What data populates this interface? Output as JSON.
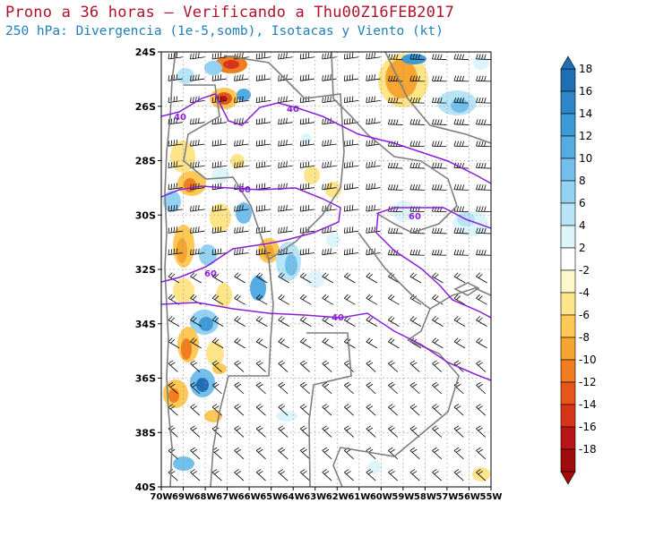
{
  "header": {
    "title": "Prono a 36 horas — Verificando a Thu00Z16FEB2017",
    "subtitle": "250 hPa: Divergencia (1e-5,somb), Isotacas y Viento (kt)"
  },
  "map": {
    "lon_range": [
      -70,
      -55
    ],
    "lat_range": [
      -40,
      -24
    ],
    "lat_labels": [
      "24S",
      "26S",
      "28S",
      "30S",
      "32S",
      "34S",
      "36S",
      "38S",
      "40S"
    ],
    "lon_labels": [
      "70W",
      "69W",
      "68W",
      "67W",
      "66W",
      "65W",
      "64W",
      "63W",
      "62W",
      "61W",
      "60W",
      "59W",
      "58W",
      "57W",
      "56W",
      "55W"
    ],
    "isotach_labels": [
      "40",
      "40",
      "60",
      "60",
      "60",
      "40"
    ]
  },
  "colorbar": {
    "levels": [
      "18",
      "16",
      "14",
      "12",
      "10",
      "8",
      "6",
      "4",
      "2",
      "-2",
      "-4",
      "-6",
      "-8",
      "-10",
      "-12",
      "-14",
      "-16",
      "-18"
    ],
    "colors": [
      "#1e6fb5",
      "#2c86c9",
      "#3d9ad8",
      "#55ace3",
      "#72bfec",
      "#93d2f3",
      "#b8e4f8",
      "#ddf4fb",
      "#ffffff",
      "#fff8cc",
      "#ffe58a",
      "#ffc857",
      "#f7a531",
      "#f07d1f",
      "#e65618",
      "#d73418",
      "#b81616",
      "#a00b0b"
    ],
    "top_color": "#1e6fb5",
    "bottom_color": "#a00b0b"
  }
}
